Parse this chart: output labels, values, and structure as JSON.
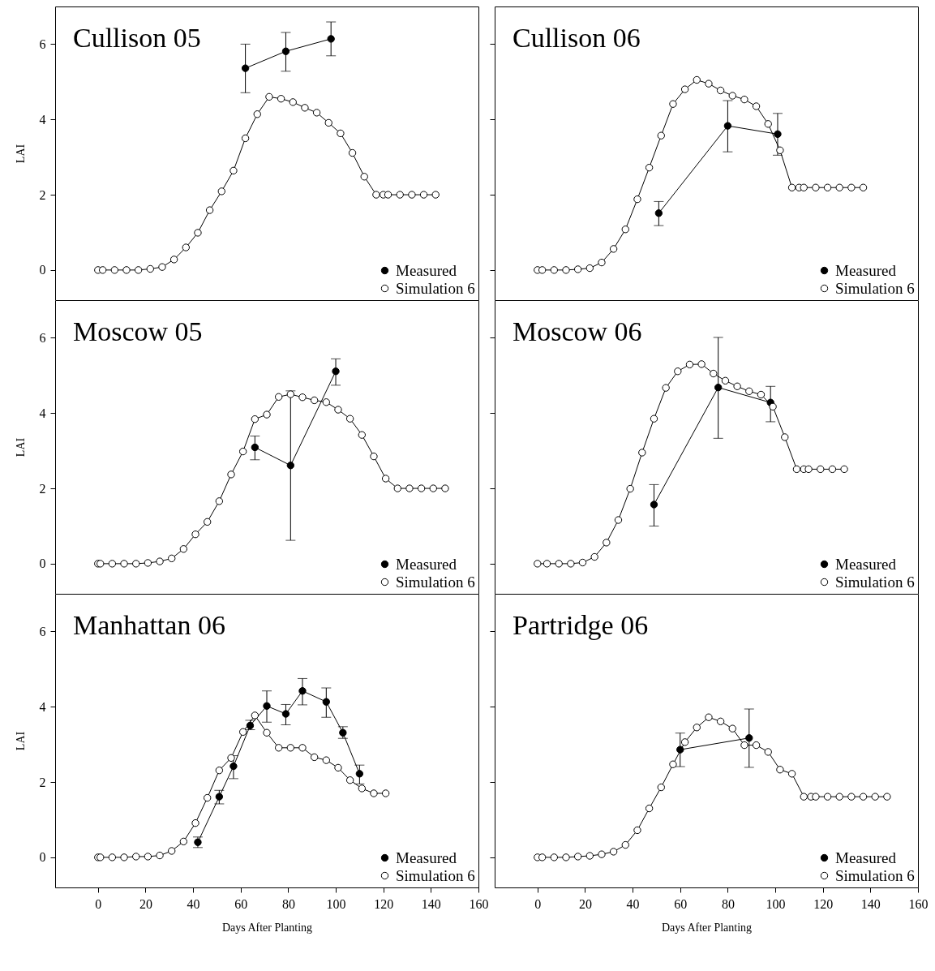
{
  "chart_data": [
    {
      "type": "line",
      "title": "Cullison 05",
      "ylabel": "LAI",
      "xlim": [
        -18,
        160
      ],
      "ylim": [
        -0.8,
        7
      ],
      "xticks": [
        0,
        20,
        40,
        60,
        80,
        100,
        120,
        140,
        160
      ],
      "yticks": [
        0,
        2,
        4,
        6
      ],
      "tick_labels": "y",
      "legend": "bottom right",
      "marker": "circle",
      "series": [
        {
          "name": "Measured",
          "color": "#000000",
          "x": [
            62,
            79,
            98
          ],
          "values": [
            5.36,
            5.81,
            6.14
          ],
          "errors": [
            [
              4.71,
              6.0
            ],
            [
              5.28,
              6.31
            ],
            [
              5.69,
              6.59
            ]
          ]
        },
        {
          "name": "Simulation 6",
          "color": "#ffffff",
          "x": [
            0,
            2,
            7,
            12,
            17,
            22,
            27,
            32,
            37,
            42,
            47,
            52,
            57,
            62,
            67,
            72,
            77,
            82,
            87,
            92,
            97,
            102,
            107,
            112,
            117,
            120,
            122,
            127,
            132,
            137,
            142
          ],
          "values": [
            0,
            0,
            0,
            0,
            0,
            0.03,
            0.08,
            0.28,
            0.6,
            0.99,
            1.59,
            2.09,
            2.64,
            3.5,
            4.14,
            4.6,
            4.55,
            4.46,
            4.31,
            4.18,
            3.91,
            3.63,
            3.11,
            2.48,
            2,
            2,
            2,
            2,
            2,
            2,
            2
          ]
        }
      ]
    },
    {
      "type": "line",
      "title": "Cullison 06",
      "xlim": [
        -18,
        160
      ],
      "ylim": [
        -0.8,
        7
      ],
      "xticks": [
        0,
        20,
        40,
        60,
        80,
        100,
        120,
        140,
        160
      ],
      "yticks": [
        0,
        2,
        4,
        6
      ],
      "tick_labels": false,
      "legend": "bottom right",
      "marker": "circle",
      "series": [
        {
          "name": "Measured",
          "color": "#000000",
          "x": [
            51,
            80,
            101
          ],
          "values": [
            1.51,
            3.83,
            3.61
          ],
          "errors": [
            [
              1.18,
              1.82
            ],
            [
              3.14,
              4.5
            ],
            [
              3.05,
              4.16
            ]
          ]
        },
        {
          "name": "Simulation 6",
          "color": "#ffffff",
          "x": [
            0,
            2,
            7,
            12,
            17,
            22,
            27,
            32,
            37,
            42,
            47,
            52,
            57,
            62,
            67,
            72,
            77,
            82,
            87,
            92,
            97,
            102,
            107,
            110,
            112,
            117,
            122,
            127,
            132,
            137
          ],
          "values": [
            0,
            0,
            0,
            0,
            0.02,
            0.05,
            0.2,
            0.56,
            1.08,
            1.88,
            2.72,
            3.57,
            4.41,
            4.8,
            5.05,
            4.95,
            4.77,
            4.63,
            4.53,
            4.35,
            3.88,
            3.18,
            2.19,
            2.19,
            2.19,
            2.19,
            2.19,
            2.19,
            2.19,
            2.19
          ]
        }
      ]
    },
    {
      "type": "line",
      "title": "Moscow 05",
      "ylabel": "LAI",
      "xlim": [
        -18,
        160
      ],
      "ylim": [
        -0.8,
        7
      ],
      "xticks": [
        0,
        20,
        40,
        60,
        80,
        100,
        120,
        140,
        160
      ],
      "yticks": [
        0,
        2,
        4,
        6
      ],
      "tick_labels": "y",
      "legend": "bottom right",
      "marker": "circle",
      "series": [
        {
          "name": "Measured",
          "color": "#000000",
          "x": [
            66,
            81,
            100
          ],
          "values": [
            3.09,
            2.61,
            5.11
          ],
          "errors": [
            [
              2.76,
              3.39
            ],
            [
              0.62,
              4.59
            ],
            [
              4.74,
              5.44
            ]
          ]
        },
        {
          "name": "Simulation 6",
          "color": "#ffffff",
          "x": [
            0,
            1,
            6,
            11,
            16,
            21,
            26,
            31,
            36,
            41,
            46,
            51,
            56,
            61,
            66,
            71,
            76,
            81,
            86,
            91,
            96,
            101,
            106,
            111,
            116,
            121,
            126,
            131,
            136,
            141,
            146
          ],
          "values": [
            0,
            0,
            0,
            0,
            0,
            0.02,
            0.06,
            0.14,
            0.39,
            0.78,
            1.11,
            1.66,
            2.37,
            2.98,
            3.84,
            3.96,
            4.43,
            4.5,
            4.42,
            4.34,
            4.29,
            4.09,
            3.85,
            3.42,
            2.85,
            2.26,
            2,
            2,
            2,
            2,
            2
          ]
        }
      ]
    },
    {
      "type": "line",
      "title": "Moscow 06",
      "xlim": [
        -18,
        160
      ],
      "ylim": [
        -0.8,
        7
      ],
      "xticks": [
        0,
        20,
        40,
        60,
        80,
        100,
        120,
        140,
        160
      ],
      "yticks": [
        0,
        2,
        4,
        6
      ],
      "tick_labels": false,
      "legend": "bottom right",
      "marker": "circle",
      "series": [
        {
          "name": "Measured",
          "color": "#000000",
          "x": [
            49,
            76,
            98
          ],
          "values": [
            1.57,
            4.68,
            4.28
          ],
          "errors": [
            [
              1.0,
              2.1
            ],
            [
              3.33,
              6.01
            ],
            [
              3.77,
              4.71
            ]
          ]
        },
        {
          "name": "Simulation 6",
          "color": "#ffffff",
          "x": [
            0,
            4,
            9,
            14,
            19,
            24,
            29,
            34,
            39,
            44,
            49,
            54,
            59,
            64,
            69,
            74,
            79,
            84,
            89,
            94,
            99,
            104,
            109,
            112,
            114,
            119,
            124,
            129
          ],
          "values": [
            0,
            0,
            0,
            0,
            0.03,
            0.18,
            0.56,
            1.16,
            1.99,
            2.95,
            3.85,
            4.67,
            5.11,
            5.29,
            5.3,
            5.05,
            4.86,
            4.71,
            4.58,
            4.49,
            4.17,
            3.36,
            2.51,
            2.51,
            2.51,
            2.51,
            2.51,
            2.51
          ]
        }
      ]
    },
    {
      "type": "line",
      "title": "Manhattan 06",
      "xlabel": "Days After Planting",
      "ylabel": "LAI",
      "xlim": [
        -18,
        160
      ],
      "ylim": [
        -0.8,
        7
      ],
      "xticks": [
        0,
        20,
        40,
        60,
        80,
        100,
        120,
        140,
        160
      ],
      "yticks": [
        0,
        2,
        4,
        6
      ],
      "legend": "bottom right",
      "marker": "circle",
      "series": [
        {
          "name": "Measured",
          "color": "#000000",
          "x": [
            42,
            51,
            57,
            64,
            71,
            79,
            86,
            96,
            103,
            110
          ],
          "values": [
            0.4,
            1.61,
            2.42,
            3.5,
            4.02,
            3.81,
            4.42,
            4.13,
            3.31,
            2.22
          ],
          "errors": [
            [
              0.26,
              0.54
            ],
            [
              1.42,
              1.78
            ],
            [
              2.09,
              2.7
            ],
            [
              3.39,
              3.64
            ],
            [
              3.59,
              4.42
            ],
            [
              3.52,
              4.06
            ],
            [
              4.05,
              4.75
            ],
            [
              3.72,
              4.5
            ],
            [
              3.16,
              3.47
            ],
            [
              1.95,
              2.45
            ]
          ]
        },
        {
          "name": "Simulation 6",
          "color": "#ffffff",
          "x": [
            0,
            1,
            6,
            11,
            16,
            21,
            26,
            31,
            36,
            41,
            46,
            51,
            56,
            61,
            66,
            71,
            76,
            81,
            86,
            91,
            96,
            101,
            106,
            111,
            116,
            121
          ],
          "values": [
            0,
            0,
            0,
            0,
            0.02,
            0.02,
            0.05,
            0.17,
            0.42,
            0.91,
            1.58,
            2.31,
            2.64,
            3.33,
            3.77,
            3.31,
            2.91,
            2.91,
            2.91,
            2.66,
            2.58,
            2.38,
            2.05,
            1.83,
            1.7,
            1.7
          ]
        }
      ]
    },
    {
      "type": "line",
      "title": "Partridge 06",
      "xlabel": "Days After Planting",
      "xlim": [
        -18,
        160
      ],
      "ylim": [
        -0.8,
        7
      ],
      "xticks": [
        0,
        20,
        40,
        60,
        80,
        100,
        120,
        140,
        160
      ],
      "yticks": [
        0,
        2,
        4,
        6
      ],
      "tick_labels": "x",
      "legend": "bottom right",
      "marker": "circle",
      "series": [
        {
          "name": "Measured",
          "color": "#000000",
          "x": [
            60,
            89
          ],
          "values": [
            2.86,
            3.17
          ],
          "errors": [
            [
              2.41,
              3.3
            ],
            [
              2.39,
              3.94
            ]
          ]
        },
        {
          "name": "Simulation 6",
          "color": "#ffffff",
          "x": [
            0,
            2,
            7,
            12,
            17,
            22,
            27,
            32,
            37,
            42,
            47,
            52,
            57,
            62,
            67,
            72,
            77,
            82,
            87,
            92,
            97,
            102,
            107,
            112,
            115,
            117,
            122,
            127,
            132,
            137,
            142,
            147
          ],
          "values": [
            0,
            0,
            0,
            0,
            0.02,
            0.04,
            0.08,
            0.15,
            0.33,
            0.72,
            1.3,
            1.86,
            2.47,
            3.06,
            3.45,
            3.72,
            3.61,
            3.42,
            2.98,
            2.98,
            2.8,
            2.33,
            2.22,
            1.61,
            1.61,
            1.61,
            1.61,
            1.61,
            1.61,
            1.61,
            1.61,
            1.61
          ]
        }
      ]
    }
  ]
}
